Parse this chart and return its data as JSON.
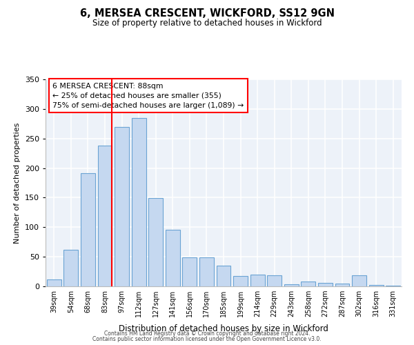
{
  "title": "6, MERSEA CRESCENT, WICKFORD, SS12 9GN",
  "subtitle": "Size of property relative to detached houses in Wickford",
  "xlabel": "Distribution of detached houses by size in Wickford",
  "ylabel": "Number of detached properties",
  "bar_color": "#c5d8f0",
  "bar_edge_color": "#6aa3d4",
  "categories": [
    "39sqm",
    "54sqm",
    "68sqm",
    "83sqm",
    "97sqm",
    "112sqm",
    "127sqm",
    "141sqm",
    "156sqm",
    "170sqm",
    "185sqm",
    "199sqm",
    "214sqm",
    "229sqm",
    "243sqm",
    "258sqm",
    "272sqm",
    "287sqm",
    "302sqm",
    "316sqm",
    "331sqm"
  ],
  "values": [
    12,
    62,
    191,
    238,
    270,
    285,
    149,
    96,
    49,
    49,
    35,
    17,
    20,
    19,
    4,
    8,
    6,
    5,
    19,
    2,
    1
  ],
  "ylim": [
    0,
    350
  ],
  "yticks": [
    0,
    50,
    100,
    150,
    200,
    250,
    300,
    350
  ],
  "annotation_title": "6 MERSEA CRESCENT: 88sqm",
  "annotation_line1": "← 25% of detached houses are smaller (355)",
  "annotation_line2": "75% of semi-detached houses are larger (1,089) →",
  "footer_line1": "Contains HM Land Registry data © Crown copyright and database right 2024.",
  "footer_line2": "Contains public sector information licensed under the Open Government Licence v3.0.",
  "background_color": "#edf2f9"
}
